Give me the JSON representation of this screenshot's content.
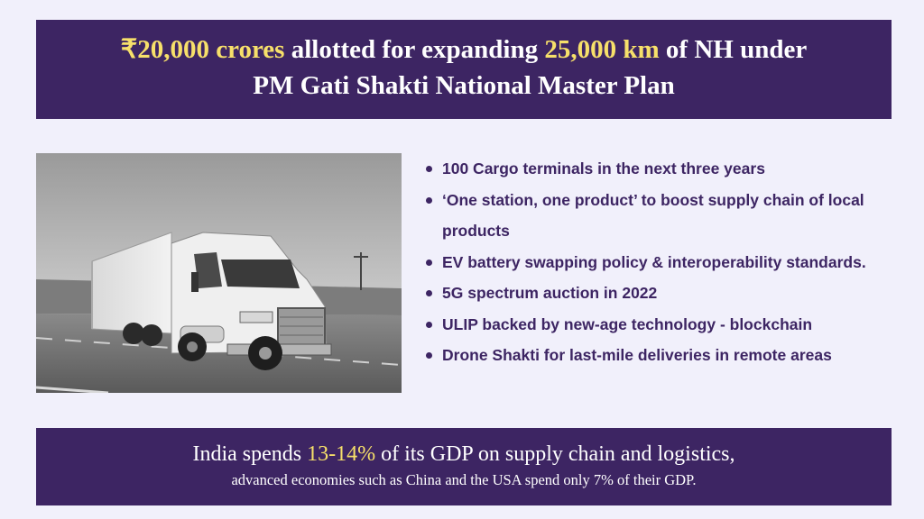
{
  "header": {
    "line1": {
      "amount": "₹20,000 crores",
      "mid": " allotted for expanding ",
      "distance": "25,000 km",
      "end": " of NH under"
    },
    "line2": "PM Gati Shakti National Master Plan"
  },
  "image": {
    "icon": "truck-photo"
  },
  "bullets": [
    "100 Cargo terminals in the next three years",
    "‘One station, one product’ to boost supply chain of local products",
    "EV battery swapping policy & interoperability standards.",
    "5G spectrum auction in 2022",
    "ULIP backed by new-age technology - blockchain",
    "Drone Shakti for last-mile deliveries in remote areas"
  ],
  "footer": {
    "line1": {
      "start": "India spends ",
      "percent": "13-14%",
      "end": " of its GDP on supply chain and logistics,"
    },
    "line2": "advanced economies such as China and the USA spend only 7% of their GDP."
  },
  "colors": {
    "banner": "#3d2563",
    "highlight": "#f7e06a",
    "background": "#f1f0fb",
    "bullet_text": "#3d2563"
  }
}
